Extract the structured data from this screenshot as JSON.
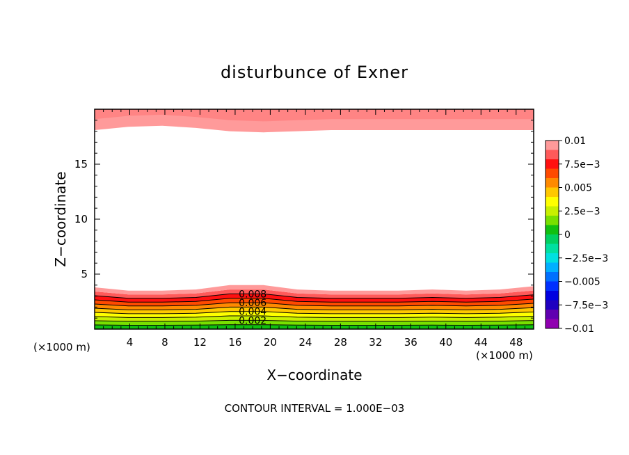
{
  "chart_data": {
    "type": "heatmap",
    "title": "disturbunce of Exner",
    "xlabel": "X−coordinate",
    "ylabel": "Z−coordinate",
    "x_unit_left": "(×1000 m)",
    "x_unit_right": "(×1000 m)",
    "footer": "CONTOUR INTERVAL = 1.000E−03",
    "xlim": [
      0,
      50
    ],
    "ylim": [
      0,
      20
    ],
    "x_ticks": [
      4,
      8,
      12,
      16,
      20,
      24,
      28,
      32,
      36,
      40,
      44,
      48
    ],
    "y_ticks": [
      5,
      10,
      15
    ],
    "contour_interval": 0.001,
    "contour_labels": [
      "0.008",
      "0.006",
      "0.004",
      "0.002"
    ],
    "colorbar": {
      "range": [
        -0.01,
        0.01
      ],
      "labels": [
        "0.01",
        "7.5e−3",
        "0.005",
        "2.5e−3",
        "0",
        "−2.5e−3",
        "−0.005",
        "−7.5e−3",
        "−0.01"
      ],
      "colors": [
        "#ff9a9a",
        "#ff5a5a",
        "#ff1010",
        "#ff4a00",
        "#ff8a00",
        "#ffc800",
        "#ffff00",
        "#c8f000",
        "#78e000",
        "#10c010",
        "#00d060",
        "#00e0a0",
        "#00e0e0",
        "#00b0ff",
        "#0070ff",
        "#0030ff",
        "#0000e0",
        "#2000c0",
        "#6000b0",
        "#9000b0"
      ]
    },
    "surface_layer_top_km": [
      3.8,
      3.5,
      3.5,
      3.6,
      4.0,
      4.0,
      3.6,
      3.5,
      3.5,
      3.5,
      3.6,
      3.5,
      3.6,
      3.9
    ],
    "top_layer_bottom_km": [
      18.4,
      18.7,
      18.8,
      18.6,
      18.3,
      18.2,
      18.3,
      18.4,
      18.4,
      18.4,
      18.4,
      18.4,
      18.4,
      18.4
    ]
  }
}
